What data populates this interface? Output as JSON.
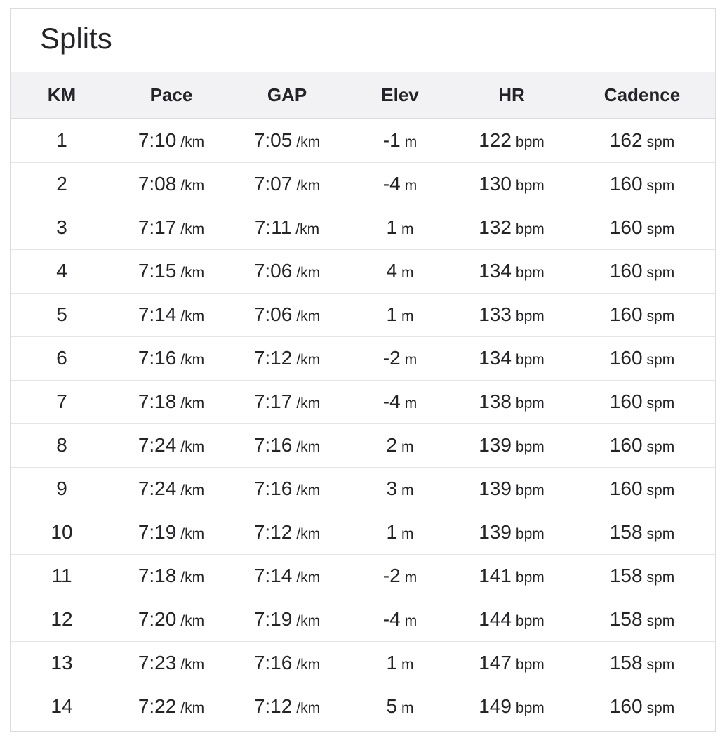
{
  "title": "Splits",
  "columns": [
    "KM",
    "Pace",
    "GAP",
    "Elev",
    "HR",
    "Cadence"
  ],
  "units": {
    "pace": "/km",
    "gap": "/km",
    "elev": "m",
    "hr": "bpm",
    "cadence": "spm"
  },
  "rows": [
    {
      "km": "1",
      "pace": "7:10",
      "gap": "7:05",
      "elev": "-1",
      "hr": "122",
      "cadence": "162"
    },
    {
      "km": "2",
      "pace": "7:08",
      "gap": "7:07",
      "elev": "-4",
      "hr": "130",
      "cadence": "160"
    },
    {
      "km": "3",
      "pace": "7:17",
      "gap": "7:11",
      "elev": "1",
      "hr": "132",
      "cadence": "160"
    },
    {
      "km": "4",
      "pace": "7:15",
      "gap": "7:06",
      "elev": "4",
      "hr": "134",
      "cadence": "160"
    },
    {
      "km": "5",
      "pace": "7:14",
      "gap": "7:06",
      "elev": "1",
      "hr": "133",
      "cadence": "160"
    },
    {
      "km": "6",
      "pace": "7:16",
      "gap": "7:12",
      "elev": "-2",
      "hr": "134",
      "cadence": "160"
    },
    {
      "km": "7",
      "pace": "7:18",
      "gap": "7:17",
      "elev": "-4",
      "hr": "138",
      "cadence": "160"
    },
    {
      "km": "8",
      "pace": "7:24",
      "gap": "7:16",
      "elev": "2",
      "hr": "139",
      "cadence": "160"
    },
    {
      "km": "9",
      "pace": "7:24",
      "gap": "7:16",
      "elev": "3",
      "hr": "139",
      "cadence": "160"
    },
    {
      "km": "10",
      "pace": "7:19",
      "gap": "7:12",
      "elev": "1",
      "hr": "139",
      "cadence": "158"
    },
    {
      "km": "11",
      "pace": "7:18",
      "gap": "7:14",
      "elev": "-2",
      "hr": "141",
      "cadence": "158"
    },
    {
      "km": "12",
      "pace": "7:20",
      "gap": "7:19",
      "elev": "-4",
      "hr": "144",
      "cadence": "158"
    },
    {
      "km": "13",
      "pace": "7:23",
      "gap": "7:16",
      "elev": "1",
      "hr": "147",
      "cadence": "158"
    },
    {
      "km": "14",
      "pace": "7:22",
      "gap": "7:12",
      "elev": "5",
      "hr": "149",
      "cadence": "160"
    }
  ]
}
